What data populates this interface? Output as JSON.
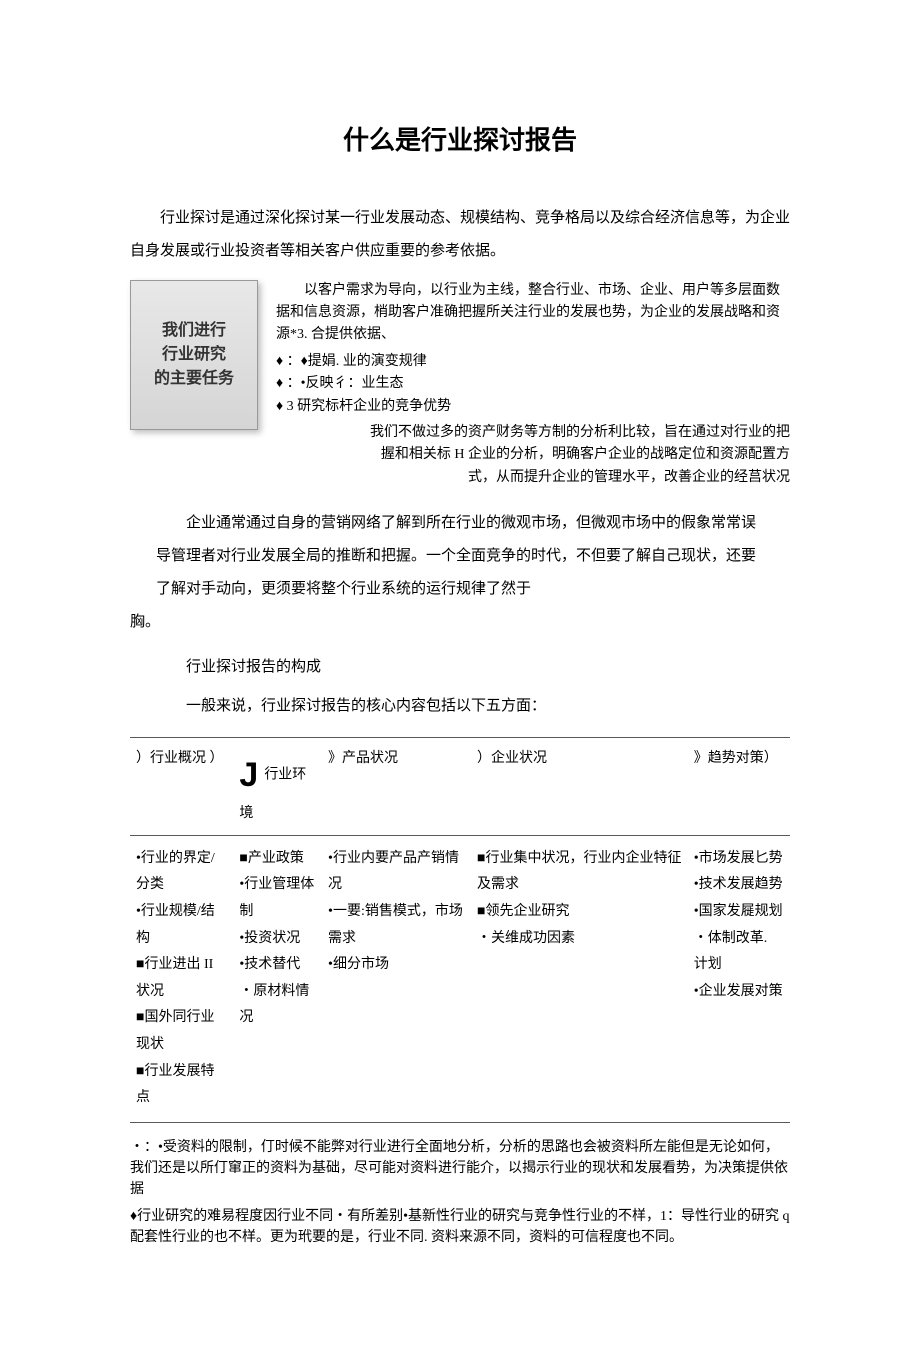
{
  "title": "什么是行业探讨报告",
  "intro": "行业探讨是通过深化探讨某一行业发展动态、规模结构、竞争格局以及综合经济信息等，为企业自身发展或行业投资者等相关客户供应重要的参考依据。",
  "task_box": "我们进行\n行业研究\n的主要任务",
  "task_lead": "以客户需求为导向，以行业为主线，整合行业、市场、企业、用户等多层面数据和信息资源，梢助客户准确把握所关注行业的发展也势，为企业的发展战略和资源*3. 合提供依据、",
  "task_bullets": [
    "♦ ：♦提娟. 业的演变规律",
    "♦ ：•反映彳：业生态",
    "♦  3 研究标杆企业的竞争优势"
  ],
  "task_foot_lines": [
    "我们不做过多的资产财务等方制的分析利比较，旨在通过对行业的把",
    "握和相关标 H 企业的分析，明确客户企业的战略定位和资源配置方",
    "式，从而提升企业的管理水平，改善企业的经莒状况"
  ],
  "para2": "企业通常通过自身的营销网络了解到所在行业的微观市场，但微观市场中的假象常常误导管理者对行业发展全局的推断和把握。一个全面竞争的时代，不但要了解自己现状，还要了解对手动向，更须要将整个行业系统的运行规律了然于",
  "para2_tail": "胸。",
  "sub_heading": "行业探讨报告的构成",
  "sub_intro": "一般来说，行业探讨报告的核心内容包括以下五方面：",
  "table": {
    "headers": [
      "）行业概况       ）",
      "J_行业环境",
      "》产品状况",
      "）企业状况",
      "》趋势对策）"
    ],
    "columns": [
      [
        "•行业的界定/分类",
        "•行业规模/结构",
        "■行业进出 II 状况",
        "■国外同行业现状",
        "■行业发展特点"
      ],
      [
        "■产业政策",
        "•行业管理体制",
        "•投资状况",
        "•技术替代",
        "・原材料情况"
      ],
      [
        "•行业内要产品产销情况",
        "•一要:销售模式，市场需求",
        "•细分市场"
      ],
      [
        "■行业集中状况，行业内企业特征及需求",
        "■领先企业研究",
        "・关维成功因素"
      ],
      [
        "•市场发展匕势",
        "•技术发展趋势",
        "•国家发屣规划",
        "・体制改革. 计划",
        "•企业发展对策"
      ]
    ]
  },
  "footnotes": [
    "・：•受资料的限制，仃时候不能弊对行业进行全面地分析，分析的思路也会被资料所左能但是无论如何，我们还是以所仃窜正的资料为基础，尽可能对资料进行能介，以揭示行业的现状和发展看势，为决策提供依据",
    "♦行业研究的难易程度因行业不同・有所差别•基新性行业的研究与竞争性行业的不样，1：导性行业的研究 q 配套性行业的也不样。更为玳要的是，行业不同. 资料来源不同，资料的可信程度也不同。"
  ]
}
